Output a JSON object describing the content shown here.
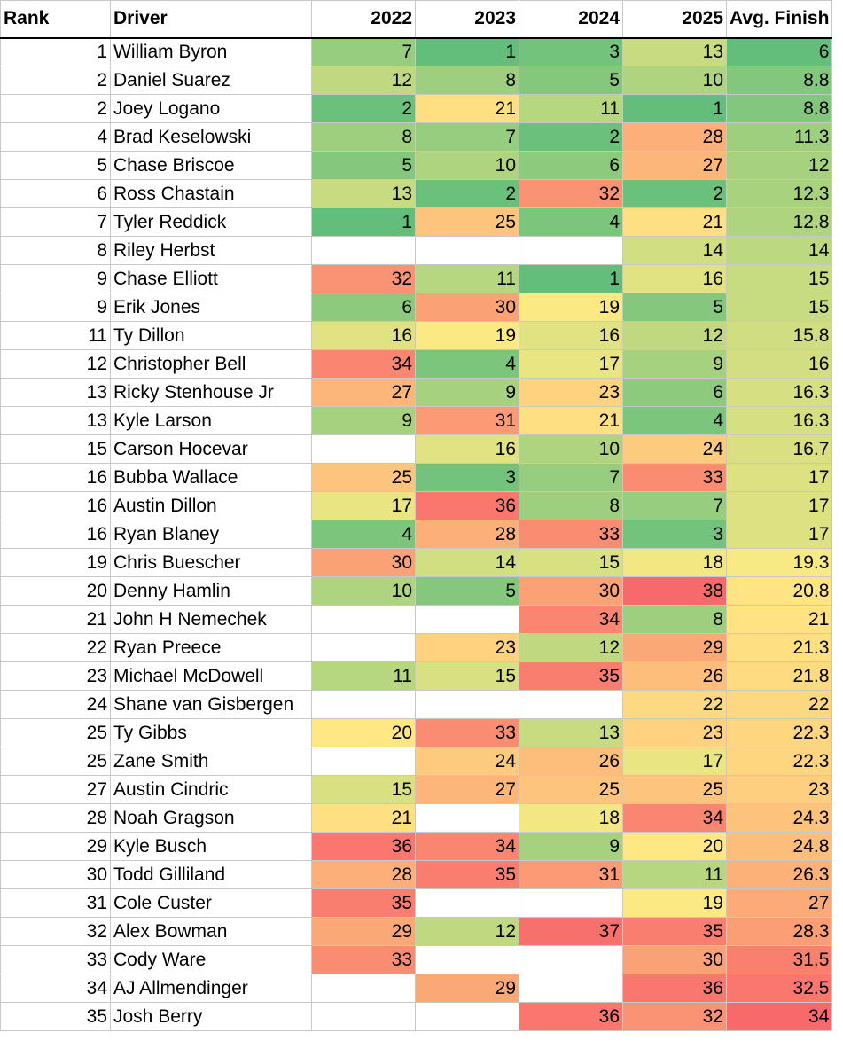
{
  "headers": [
    "Rank",
    "Driver",
    "2022",
    "2023",
    "2024",
    "2025",
    "Avg. Finish"
  ],
  "rows": [
    {
      "rank": "1",
      "driver": "William Byron",
      "y2022": "7",
      "y2023": "1",
      "y2024": "3",
      "y2025": "13",
      "avg": "6"
    },
    {
      "rank": "2",
      "driver": "Daniel Suarez",
      "y2022": "12",
      "y2023": "8",
      "y2024": "5",
      "y2025": "10",
      "avg": "8.8"
    },
    {
      "rank": "2",
      "driver": "Joey Logano",
      "y2022": "2",
      "y2023": "21",
      "y2024": "11",
      "y2025": "1",
      "avg": "8.8"
    },
    {
      "rank": "4",
      "driver": "Brad Keselowski",
      "y2022": "8",
      "y2023": "7",
      "y2024": "2",
      "y2025": "28",
      "avg": "11.3"
    },
    {
      "rank": "5",
      "driver": "Chase Briscoe",
      "y2022": "5",
      "y2023": "10",
      "y2024": "6",
      "y2025": "27",
      "avg": "12"
    },
    {
      "rank": "6",
      "driver": "Ross Chastain",
      "y2022": "13",
      "y2023": "2",
      "y2024": "32",
      "y2025": "2",
      "avg": "12.3"
    },
    {
      "rank": "7",
      "driver": "Tyler Reddick",
      "y2022": "1",
      "y2023": "25",
      "y2024": "4",
      "y2025": "21",
      "avg": "12.8"
    },
    {
      "rank": "8",
      "driver": "Riley Herbst",
      "y2022": "",
      "y2023": "",
      "y2024": "",
      "y2025": "14",
      "avg": "14"
    },
    {
      "rank": "9",
      "driver": "Chase Elliott",
      "y2022": "32",
      "y2023": "11",
      "y2024": "1",
      "y2025": "16",
      "avg": "15"
    },
    {
      "rank": "9",
      "driver": "Erik Jones",
      "y2022": "6",
      "y2023": "30",
      "y2024": "19",
      "y2025": "5",
      "avg": "15"
    },
    {
      "rank": "11",
      "driver": "Ty Dillon",
      "y2022": "16",
      "y2023": "19",
      "y2024": "16",
      "y2025": "12",
      "avg": "15.8"
    },
    {
      "rank": "12",
      "driver": "Christopher Bell",
      "y2022": "34",
      "y2023": "4",
      "y2024": "17",
      "y2025": "9",
      "avg": "16"
    },
    {
      "rank": "13",
      "driver": "Ricky Stenhouse Jr",
      "y2022": "27",
      "y2023": "9",
      "y2024": "23",
      "y2025": "6",
      "avg": "16.3"
    },
    {
      "rank": "13",
      "driver": "Kyle Larson",
      "y2022": "9",
      "y2023": "31",
      "y2024": "21",
      "y2025": "4",
      "avg": "16.3"
    },
    {
      "rank": "15",
      "driver": "Carson Hocevar",
      "y2022": "",
      "y2023": "16",
      "y2024": "10",
      "y2025": "24",
      "avg": "16.7"
    },
    {
      "rank": "16",
      "driver": "Bubba Wallace",
      "y2022": "25",
      "y2023": "3",
      "y2024": "7",
      "y2025": "33",
      "avg": "17"
    },
    {
      "rank": "16",
      "driver": "Austin Dillon",
      "y2022": "17",
      "y2023": "36",
      "y2024": "8",
      "y2025": "7",
      "avg": "17"
    },
    {
      "rank": "16",
      "driver": "Ryan Blaney",
      "y2022": "4",
      "y2023": "28",
      "y2024": "33",
      "y2025": "3",
      "avg": "17"
    },
    {
      "rank": "19",
      "driver": "Chris Buescher",
      "y2022": "30",
      "y2023": "14",
      "y2024": "15",
      "y2025": "18",
      "avg": "19.3"
    },
    {
      "rank": "20",
      "driver": "Denny Hamlin",
      "y2022": "10",
      "y2023": "5",
      "y2024": "30",
      "y2025": "38",
      "avg": "20.8"
    },
    {
      "rank": "21",
      "driver": "John H Nemechek",
      "y2022": "",
      "y2023": "",
      "y2024": "34",
      "y2025": "8",
      "avg": "21"
    },
    {
      "rank": "22",
      "driver": "Ryan Preece",
      "y2022": "",
      "y2023": "23",
      "y2024": "12",
      "y2025": "29",
      "avg": "21.3"
    },
    {
      "rank": "23",
      "driver": "Michael McDowell",
      "y2022": "11",
      "y2023": "15",
      "y2024": "35",
      "y2025": "26",
      "avg": "21.8"
    },
    {
      "rank": "24",
      "driver": "Shane van Gisbergen",
      "y2022": "",
      "y2023": "",
      "y2024": "",
      "y2025": "22",
      "avg": "22"
    },
    {
      "rank": "25",
      "driver": "Ty Gibbs",
      "y2022": "20",
      "y2023": "33",
      "y2024": "13",
      "y2025": "23",
      "avg": "22.3"
    },
    {
      "rank": "25",
      "driver": "Zane Smith",
      "y2022": "",
      "y2023": "24",
      "y2024": "26",
      "y2025": "17",
      "avg": "22.3"
    },
    {
      "rank": "27",
      "driver": "Austin Cindric",
      "y2022": "15",
      "y2023": "27",
      "y2024": "25",
      "y2025": "25",
      "avg": "23"
    },
    {
      "rank": "28",
      "driver": "Noah Gragson",
      "y2022": "21",
      "y2023": "",
      "y2024": "18",
      "y2025": "34",
      "avg": "24.3"
    },
    {
      "rank": "29",
      "driver": "Kyle Busch",
      "y2022": "36",
      "y2023": "34",
      "y2024": "9",
      "y2025": "20",
      "avg": "24.8"
    },
    {
      "rank": "30",
      "driver": "Todd Gilliland",
      "y2022": "28",
      "y2023": "35",
      "y2024": "31",
      "y2025": "11",
      "avg": "26.3"
    },
    {
      "rank": "31",
      "driver": "Cole Custer",
      "y2022": "35",
      "y2023": "",
      "y2024": "",
      "y2025": "19",
      "avg": "27"
    },
    {
      "rank": "32",
      "driver": "Alex Bowman",
      "y2022": "29",
      "y2023": "12",
      "y2024": "37",
      "y2025": "35",
      "avg": "28.3"
    },
    {
      "rank": "33",
      "driver": "Cody Ware",
      "y2022": "33",
      "y2023": "",
      "y2024": "",
      "y2025": "30",
      "avg": "31.5"
    },
    {
      "rank": "34",
      "driver": "AJ Allmendinger",
      "y2022": "",
      "y2023": "29",
      "y2024": "",
      "y2025": "36",
      "avg": "32.5"
    },
    {
      "rank": "35",
      "driver": "Josh Berry",
      "y2022": "",
      "y2023": "",
      "y2024": "36",
      "y2025": "32",
      "avg": "34"
    }
  ],
  "colors": {
    "best": "#63be7b",
    "middle": "#ffeb84",
    "worst": "#f8696b"
  },
  "color_scale": {
    "years": {
      "min": 1,
      "max": 38
    },
    "avg": {
      "min": 6,
      "max": 34
    }
  }
}
